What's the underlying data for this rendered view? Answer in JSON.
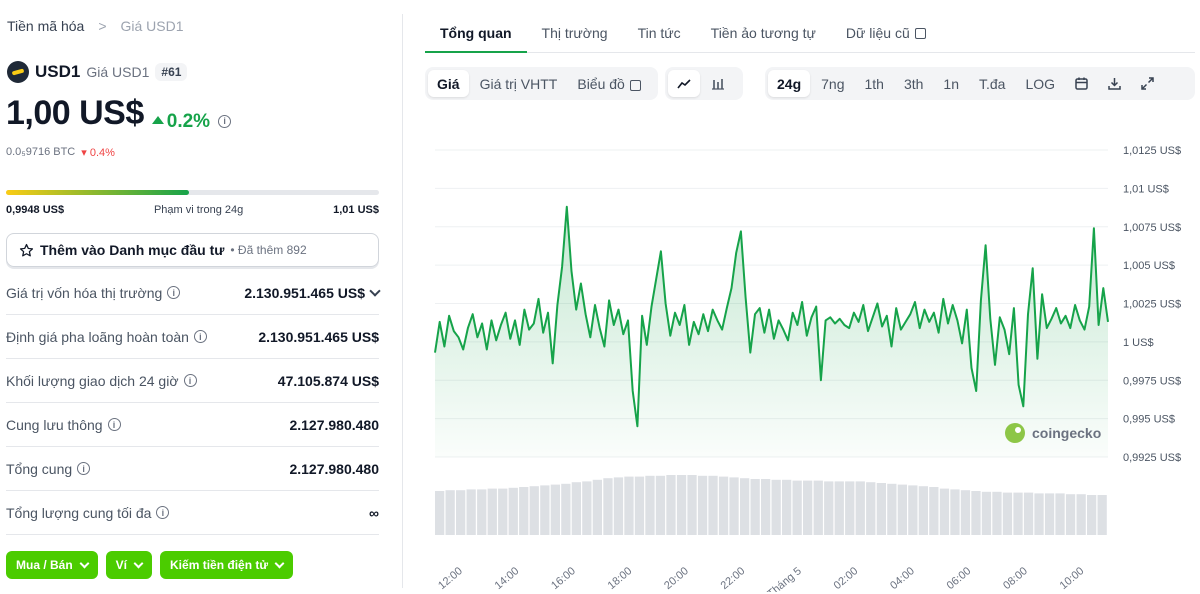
{
  "breadcrumb": {
    "parent": "Tiền mã hóa",
    "separator": ">",
    "current": "Giá USD1"
  },
  "coin": {
    "name": "USD1",
    "subtitle": "Giá USD1",
    "rank": "#61"
  },
  "price": {
    "value": "1,00 US$",
    "change": "0.2%",
    "btc_value": "0.0₅9716 BTC",
    "btc_change": "0.4%"
  },
  "range24h": {
    "low": "0,9948 US$",
    "label": "Phạm vi trong 24g",
    "high": "1,01 US$",
    "position": 0.49
  },
  "watchlist": {
    "label": "Thêm vào Danh mục đầu tư",
    "sub": "• Đã thêm 892"
  },
  "stats": [
    {
      "label": "Giá trị vốn hóa thị trường",
      "value": "2.130.951.465 US$"
    },
    {
      "label": "Định giá pha loãng hoàn toàn",
      "value": "2.130.951.465 US$"
    },
    {
      "label": "Khối lượng giao dịch 24 giờ",
      "value": "47.105.874 US$"
    },
    {
      "label": "Cung lưu thông",
      "value": "2.127.980.480"
    },
    {
      "label": "Tổng cung",
      "value": "2.127.980.480"
    },
    {
      "label": "Tổng lượng cung tối đa",
      "value": "∞"
    }
  ],
  "actions": {
    "buy_sell": "Mua / Bán",
    "wallet": "Ví",
    "earn": "Kiếm tiền điện tử"
  },
  "tabs": [
    "Tổng quan",
    "Thị trường",
    "Tin tức",
    "Tiền ảo tương tự",
    "Dữ liệu cũ"
  ],
  "chart_controls": {
    "views": [
      "Giá",
      "Giá trị VHTT",
      "Biểu đồ"
    ],
    "ranges": [
      "24g",
      "7ng",
      "1th",
      "3th",
      "1n",
      "T.đa",
      "LOG"
    ]
  },
  "watermark": "coingecko",
  "colors": {
    "accent": "#16a34a",
    "buy_button": "#4bcc00",
    "down": "#ef4444"
  },
  "chart_data": {
    "type": "area",
    "title": "",
    "xlabel": "",
    "ylabel": "",
    "ylim": [
      0.9925,
      1.0125
    ],
    "y_ticks": [
      "1,0125 US$",
      "1,01 US$",
      "1,0075 US$",
      "1,005 US$",
      "1,0025 US$",
      "1 US$",
      "0,9975 US$",
      "0,995 US$",
      "0,9925 US$"
    ],
    "y_tick_values": [
      1.0125,
      1.01,
      1.0075,
      1.005,
      1.0025,
      1.0,
      0.9975,
      0.995,
      0.9925
    ],
    "x_ticks": [
      "12:00",
      "14:00",
      "16:00",
      "18:00",
      "20:00",
      "22:00",
      "5. Tháng 5",
      "02:00",
      "04:00",
      "06:00",
      "08:00",
      "10:00"
    ],
    "series": [
      {
        "values": [
          0.9993,
          1.0013,
          0.9997,
          1.0017,
          1.0007,
          1.0003,
          0.9995,
          1.0009,
          1.0018,
          1.0003,
          1.0012,
          0.9995,
          1.0014,
          1.0001,
          1.0011,
          1.0019,
          1.0002,
          1.0014,
          0.9998,
          1.0021,
          1.0008,
          1.0012,
          1.0028,
          1.0006,
          1.0019,
          0.9986,
          1.0024,
          1.0049,
          1.0088,
          1.0046,
          1.0021,
          1.0038,
          1.0018,
          1.0003,
          1.0024,
          1.0009,
          0.9997,
          1.0027,
          1.0011,
          1.0021,
          1.0005,
          1.0014,
          0.9968,
          0.9945,
          1.0017,
          0.9998,
          1.0023,
          1.0041,
          1.0059,
          1.0025,
          1.0004,
          1.0019,
          1.0011,
          1.0024,
          0.9998,
          1.0013,
          1.0005,
          1.0018,
          1.0007,
          1.0021,
          1.0014,
          1.0008,
          1.0022,
          1.0035,
          1.0058,
          1.0072,
          1.0029,
          0.9993,
          1.0018,
          1.0022,
          1.0006,
          1.0021,
          1.0002,
          1.0014,
          1.0008,
          1.0001,
          1.0019,
          1.0011,
          1.0026,
          1.0004,
          1.0016,
          1.0023,
          0.9975,
          1.0014,
          1.0016,
          1.0012,
          1.0015,
          1.0011,
          1.0009,
          1.0019,
          1.0013,
          1.0024,
          1.0007,
          1.0016,
          1.0025,
          1.001,
          1.0017,
          0.9997,
          1.0022,
          1.0008,
          1.0013,
          1.0018,
          1.0026,
          1.0009,
          1.0021,
          1.0013,
          1.0019,
          1.0006,
          1.0028,
          1.0012,
          1.0024,
          1.0014,
          0.9999,
          1.0021,
          0.9983,
          0.9968,
          1.0027,
          1.0063,
          1.0015,
          0.9985,
          1.0016,
          1.0008,
          0.9992,
          1.0022,
          0.9972,
          0.9958,
          1.0018,
          1.0048,
          0.9989,
          1.0031,
          1.0009,
          1.0015,
          1.0022,
          1.0012,
          1.0017,
          1.0009,
          1.0024,
          1.0014,
          1.0008,
          1.0023,
          1.0074,
          1.0011,
          1.0035,
          1.0013
        ]
      }
    ],
    "volume": [
      0.55,
      0.56,
      0.56,
      0.57,
      0.57,
      0.58,
      0.58,
      0.59,
      0.6,
      0.61,
      0.62,
      0.63,
      0.64,
      0.66,
      0.67,
      0.69,
      0.71,
      0.72,
      0.73,
      0.73,
      0.74,
      0.74,
      0.75,
      0.75,
      0.75,
      0.74,
      0.74,
      0.73,
      0.72,
      0.71,
      0.7,
      0.7,
      0.69,
      0.69,
      0.68,
      0.68,
      0.68,
      0.67,
      0.67,
      0.67,
      0.67,
      0.66,
      0.65,
      0.64,
      0.63,
      0.62,
      0.61,
      0.6,
      0.58,
      0.57,
      0.56,
      0.55,
      0.54,
      0.54,
      0.53,
      0.53,
      0.53,
      0.52,
      0.52,
      0.52,
      0.51,
      0.51,
      0.5,
      0.5
    ]
  }
}
